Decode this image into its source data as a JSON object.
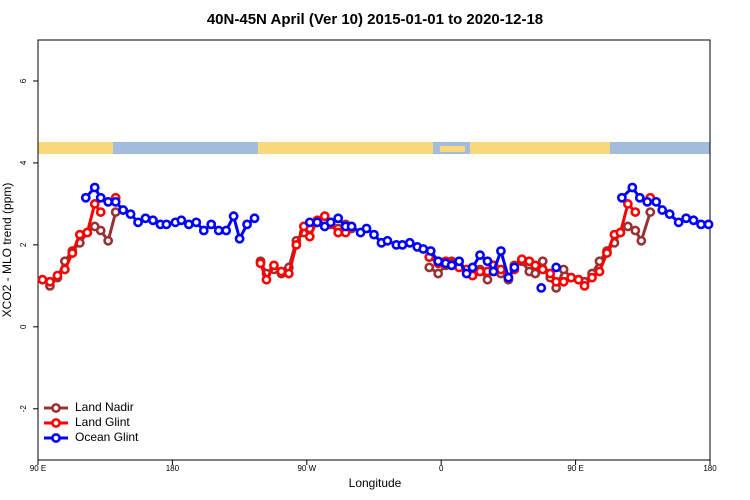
{
  "chart_data": {
    "type": "line",
    "title": "40N-45N April (Ver 10)   2015-01-01 to 2020-12-18",
    "xlabel": "Longitude",
    "ylabel": "XCO2 - MLO trend (ppm)",
    "xlim": [
      90,
      540
    ],
    "ylim": [
      -3.25,
      7
    ],
    "xticks": [
      90,
      180,
      {
        "value": 270,
        "label": "90 W"
      },
      {
        "value": 360,
        "label": "0"
      },
      {
        "value": 450,
        "label": "90 E"
      },
      {
        "value": 540,
        "label": "180"
      }
    ],
    "xtick_first_label": "90 E",
    "yticks": [
      -2,
      0,
      2,
      4,
      6
    ],
    "legend": "bottom-left",
    "series": [
      {
        "name": "Land Nadir",
        "color": "#993333",
        "x": [
          98,
          103,
          108,
          113,
          118,
          123,
          128,
          132,
          137,
          142,
          null,
          239,
          243,
          248,
          253,
          258,
          263,
          268,
          272,
          277,
          282,
          286,
          291,
          296,
          300,
          null,
          352,
          358,
          363,
          367,
          372,
          377,
          381,
          386,
          391,
          395,
          400,
          405,
          409,
          414,
          419,
          423,
          428,
          433,
          437,
          442,
          447,
          452,
          456,
          461,
          466,
          471,
          476,
          480,
          485,
          490,
          494,
          500
        ],
        "values": [
          1.0,
          1.2,
          1.6,
          1.85,
          2.05,
          2.3,
          2.45,
          2.35,
          2.1,
          2.8,
          null,
          1.6,
          1.3,
          1.4,
          1.3,
          1.45,
          2.1,
          2.3,
          2.4,
          2.55,
          2.6,
          2.55,
          2.4,
          2.5,
          2.4,
          null,
          1.45,
          1.3,
          1.5,
          1.6,
          1.5,
          1.35,
          1.3,
          1.4,
          1.15,
          1.5,
          1.3,
          1.15,
          1.5,
          1.6,
          1.35,
          1.3,
          1.6,
          1.2,
          0.95,
          1.4,
          1.2,
          1.15,
          1.1,
          1.3,
          1.6,
          1.85,
          2.05,
          2.3,
          2.45,
          2.35,
          2.1,
          2.8
        ]
      },
      {
        "name": "Land Glint",
        "color": "#ff0000",
        "x": [
          93,
          98,
          103,
          108,
          113,
          118,
          123,
          128,
          132,
          null,
          142,
          null,
          239,
          243,
          248,
          253,
          258,
          263,
          268,
          272,
          277,
          282,
          286,
          291,
          296,
          null,
          352,
          358,
          363,
          367,
          372,
          377,
          381,
          386,
          391,
          395,
          400,
          405,
          409,
          414,
          419,
          423,
          428,
          433,
          437,
          442,
          447,
          452,
          456,
          461,
          466,
          471,
          476,
          480,
          485,
          490,
          null,
          500
        ],
        "values": [
          1.15,
          1.1,
          1.25,
          1.4,
          1.8,
          2.25,
          2.3,
          3.0,
          2.8,
          null,
          3.15,
          null,
          1.55,
          1.15,
          1.5,
          1.35,
          1.3,
          2.0,
          2.45,
          2.2,
          2.6,
          2.7,
          2.5,
          2.3,
          2.3,
          null,
          1.7,
          1.55,
          1.6,
          1.55,
          1.45,
          1.4,
          1.25,
          1.35,
          1.35,
          1.5,
          1.4,
          1.2,
          1.4,
          1.65,
          1.6,
          1.5,
          1.4,
          1.3,
          1.1,
          1.1,
          1.2,
          1.15,
          1.0,
          1.2,
          1.35,
          1.8,
          2.25,
          2.3,
          3.0,
          2.8,
          null,
          3.15
        ]
      },
      {
        "name": "Ocean Glint",
        "color": "#0000ff",
        "x": [
          122,
          128,
          132,
          137,
          142,
          147,
          152,
          157,
          162,
          167,
          172,
          176,
          182,
          186,
          191,
          196,
          201,
          206,
          211,
          216,
          221,
          225,
          230,
          235,
          null,
          272,
          277,
          282,
          286,
          291,
          296,
          300,
          306,
          310,
          315,
          320,
          324,
          330,
          334,
          339,
          344,
          348,
          353,
          358,
          363,
          367,
          372,
          377,
          381,
          386,
          391,
          395,
          400,
          405,
          409,
          null,
          427,
          null,
          437,
          null,
          481,
          488,
          493,
          498,
          504,
          508,
          513,
          519,
          524,
          529,
          534,
          539
        ],
        "values": [
          3.15,
          3.4,
          3.15,
          3.05,
          3.05,
          2.85,
          2.75,
          2.55,
          2.65,
          2.6,
          2.5,
          2.5,
          2.55,
          2.6,
          2.5,
          2.55,
          2.35,
          2.5,
          2.35,
          2.35,
          2.7,
          2.15,
          2.5,
          2.65,
          null,
          2.55,
          2.55,
          2.45,
          2.55,
          2.65,
          2.45,
          2.45,
          2.3,
          2.4,
          2.25,
          2.05,
          2.1,
          2.0,
          2.0,
          2.05,
          1.95,
          1.9,
          1.85,
          1.6,
          1.55,
          1.5,
          1.6,
          1.3,
          1.45,
          1.75,
          1.6,
          1.35,
          1.85,
          1.2,
          1.45,
          null,
          0.95,
          null,
          1.45,
          null,
          3.15,
          3.4,
          3.15,
          3.05,
          3.05,
          2.85,
          2.75,
          2.55,
          2.65,
          2.6,
          2.5,
          2.5
        ]
      }
    ]
  }
}
